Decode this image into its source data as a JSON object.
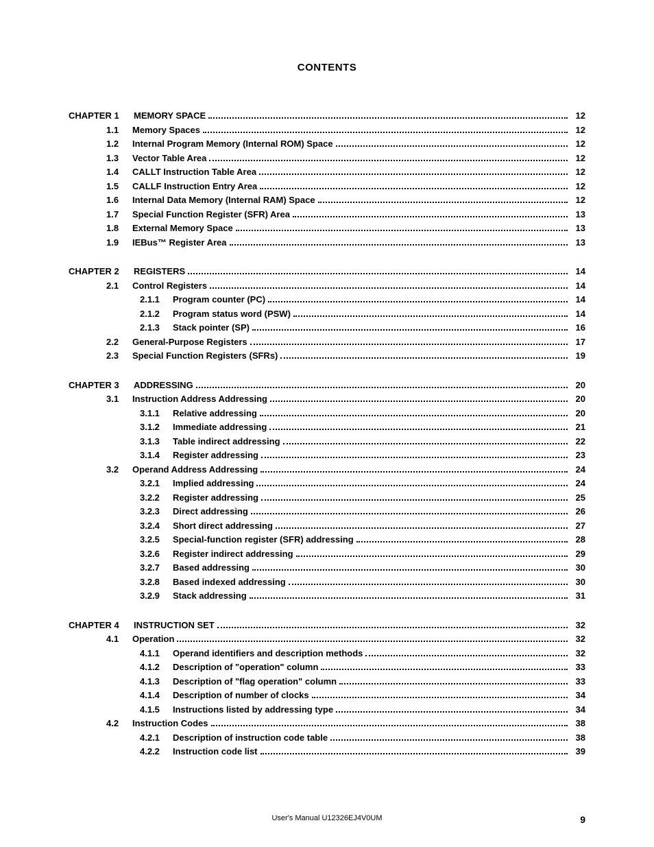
{
  "heading": "CONTENTS",
  "footer": "User's Manual  U12326EJ4V0UM",
  "page_number": "9",
  "toc": [
    {
      "level": "chapter",
      "num": "CHAPTER 1",
      "title": "MEMORY SPACE",
      "page": "12"
    },
    {
      "level": "section",
      "num": "1.1",
      "title": "Memory Spaces",
      "page": "12"
    },
    {
      "level": "section",
      "num": "1.2",
      "title": "Internal Program Memory (Internal ROM) Space",
      "page": "12"
    },
    {
      "level": "section",
      "num": "1.3",
      "title": "Vector Table Area",
      "page": "12"
    },
    {
      "level": "section",
      "num": "1.4",
      "title": "CALLT Instruction Table Area",
      "page": "12"
    },
    {
      "level": "section",
      "num": "1.5",
      "title": "CALLF Instruction Entry Area",
      "page": "12"
    },
    {
      "level": "section",
      "num": "1.6",
      "title": "Internal Data Memory (Internal RAM) Space",
      "page": "12"
    },
    {
      "level": "section",
      "num": "1.7",
      "title": "Special Function Register (SFR) Area",
      "page": "13"
    },
    {
      "level": "section",
      "num": "1.8",
      "title": "External Memory Space",
      "page": "13"
    },
    {
      "level": "section",
      "num": "1.9",
      "title": "IEBus™ Register Area",
      "page": "13"
    },
    {
      "level": "spacer"
    },
    {
      "level": "chapter",
      "num": "CHAPTER 2",
      "title": "REGISTERS",
      "page": "14"
    },
    {
      "level": "section",
      "num": "2.1",
      "title": "Control Registers",
      "page": "14"
    },
    {
      "level": "sub",
      "num": "2.1.1",
      "title": "Program counter (PC)",
      "page": "14"
    },
    {
      "level": "sub",
      "num": "2.1.2",
      "title": "Program status word (PSW)",
      "page": "14"
    },
    {
      "level": "sub",
      "num": "2.1.3",
      "title": "Stack pointer (SP)",
      "page": "16"
    },
    {
      "level": "section",
      "num": "2.2",
      "title": "General-Purpose Registers",
      "page": "17"
    },
    {
      "level": "section",
      "num": "2.3",
      "title": "Special Function Registers (SFRs)",
      "page": "19"
    },
    {
      "level": "spacer"
    },
    {
      "level": "chapter",
      "num": "CHAPTER 3",
      "title": "ADDRESSING",
      "page": "20"
    },
    {
      "level": "section",
      "num": "3.1",
      "title": "Instruction Address Addressing",
      "page": "20"
    },
    {
      "level": "sub",
      "num": "3.1.1",
      "title": "Relative addressing",
      "page": "20"
    },
    {
      "level": "sub",
      "num": "3.1.2",
      "title": "Immediate addressing",
      "page": "21"
    },
    {
      "level": "sub",
      "num": "3.1.3",
      "title": "Table indirect addressing",
      "page": "22"
    },
    {
      "level": "sub",
      "num": "3.1.4",
      "title": "Register addressing",
      "page": "23"
    },
    {
      "level": "section",
      "num": "3.2",
      "title": "Operand Address Addressing",
      "page": "24"
    },
    {
      "level": "sub",
      "num": "3.2.1",
      "title": "Implied addressing",
      "page": "24"
    },
    {
      "level": "sub",
      "num": "3.2.2",
      "title": "Register addressing",
      "page": "25"
    },
    {
      "level": "sub",
      "num": "3.2.3",
      "title": "Direct addressing",
      "page": "26"
    },
    {
      "level": "sub",
      "num": "3.2.4",
      "title": "Short direct addressing",
      "page": "27"
    },
    {
      "level": "sub",
      "num": "3.2.5",
      "title": "Special-function register (SFR) addressing",
      "page": "28"
    },
    {
      "level": "sub",
      "num": "3.2.6",
      "title": "Register indirect addressing",
      "page": "29"
    },
    {
      "level": "sub",
      "num": "3.2.7",
      "title": "Based addressing",
      "page": "30"
    },
    {
      "level": "sub",
      "num": "3.2.8",
      "title": "Based indexed addressing",
      "page": "30"
    },
    {
      "level": "sub",
      "num": "3.2.9",
      "title": "Stack addressing",
      "page": "31"
    },
    {
      "level": "spacer"
    },
    {
      "level": "chapter",
      "num": "CHAPTER 4",
      "title": "INSTRUCTION SET",
      "page": "32"
    },
    {
      "level": "section",
      "num": "4.1",
      "title": "Operation",
      "page": "32"
    },
    {
      "level": "sub",
      "num": "4.1.1",
      "title": "Operand identifiers and description methods",
      "page": "32"
    },
    {
      "level": "sub",
      "num": "4.1.2",
      "title": "Description of \"operation\" column",
      "page": "33"
    },
    {
      "level": "sub",
      "num": "4.1.3",
      "title": "Description of \"flag operation\" column",
      "page": "33"
    },
    {
      "level": "sub",
      "num": "4.1.4",
      "title": "Description of number of clocks",
      "page": "34"
    },
    {
      "level": "sub",
      "num": "4.1.5",
      "title": "Instructions listed by addressing type",
      "page": "34"
    },
    {
      "level": "section",
      "num": "4.2",
      "title": "Instruction Codes",
      "page": "38"
    },
    {
      "level": "sub",
      "num": "4.2.1",
      "title": "Description of instruction code table",
      "page": "38"
    },
    {
      "level": "sub",
      "num": "4.2.2",
      "title": "Instruction code list",
      "page": "39"
    }
  ]
}
